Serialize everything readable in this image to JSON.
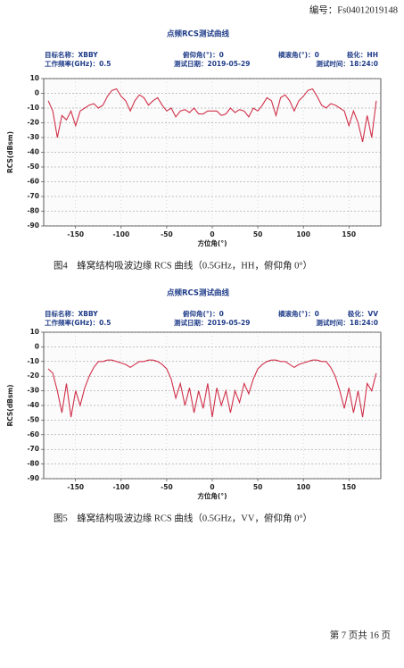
{
  "header": {
    "code": "编号：Fs04012019148"
  },
  "chart_data": [
    {
      "type": "line",
      "title": "点频RCS测试曲线",
      "info": [
        [
          "目标名称：XBBY",
          "俯仰角(°)：0",
          "横滚角(°)：0",
          "极化：HH"
        ],
        [
          "工作频率(GHz)：0.5",
          "测试日期：2019-05-29",
          "测试时间：18:24:0"
        ]
      ],
      "x_label": "方位角(°)",
      "y_label": "RCS(dBsm)",
      "color": "#d0304a",
      "grid": true,
      "xlim": [
        -185,
        185
      ],
      "ylim": [
        -90,
        10
      ],
      "xticks": [
        -150,
        -100,
        -50,
        0,
        50,
        100,
        150
      ],
      "yticks": [
        10,
        0,
        -10,
        -20,
        -30,
        -40,
        -50,
        -60,
        -70,
        -80,
        -90
      ],
      "x": [
        -180,
        -175,
        -170,
        -165,
        -160,
        -155,
        -150,
        -145,
        -140,
        -135,
        -130,
        -125,
        -120,
        -115,
        -110,
        -105,
        -100,
        -95,
        -90,
        -85,
        -80,
        -75,
        -70,
        -65,
        -60,
        -55,
        -50,
        -45,
        -40,
        -35,
        -30,
        -25,
        -20,
        -15,
        -10,
        -5,
        0,
        5,
        10,
        15,
        20,
        25,
        30,
        35,
        40,
        45,
        50,
        55,
        60,
        65,
        70,
        75,
        80,
        85,
        90,
        95,
        100,
        105,
        110,
        115,
        120,
        125,
        130,
        135,
        140,
        145,
        150,
        155,
        160,
        165,
        170,
        175,
        180
      ],
      "values": [
        -5,
        -12,
        -30,
        -15,
        -18,
        -12,
        -22,
        -12,
        -10,
        -8,
        -7,
        -10,
        -8,
        -2,
        2,
        3,
        -2,
        -5,
        -12,
        -5,
        -1,
        -3,
        -8,
        -5,
        -3,
        -8,
        -12,
        -10,
        -16,
        -12,
        -11,
        -13,
        -10,
        -14,
        -14,
        -12,
        -12,
        -12,
        -15,
        -14,
        -10,
        -13,
        -11,
        -12,
        -16,
        -10,
        -12,
        -8,
        -3,
        -5,
        -15,
        -3,
        -1,
        -5,
        -12,
        -5,
        -2,
        2,
        3,
        -2,
        -8,
        -10,
        -7,
        -8,
        -10,
        -12,
        -22,
        -12,
        -20,
        -33,
        -15,
        -30,
        -5
      ]
    },
    {
      "type": "line",
      "title": "点频RCS测试曲线",
      "info": [
        [
          "目标名称：XBBY",
          "俯仰角(°)：0",
          "横滚角(°)：0",
          "极化：VV"
        ],
        [
          "工作频率(GHz)：0.5",
          "测试日期：2019-05-29",
          "测试时间：18:24:0"
        ]
      ],
      "x_label": "方位角(°)",
      "y_label": "RCS(dBsm)",
      "color": "#d0304a",
      "grid": true,
      "xlim": [
        -185,
        185
      ],
      "ylim": [
        -90,
        10
      ],
      "xticks": [
        -150,
        -100,
        -50,
        0,
        50,
        100,
        150
      ],
      "yticks": [
        10,
        0,
        -10,
        -20,
        -30,
        -40,
        -50,
        -60,
        -70,
        -80,
        -90
      ],
      "x": [
        -180,
        -175,
        -170,
        -165,
        -160,
        -155,
        -150,
        -145,
        -140,
        -135,
        -130,
        -125,
        -120,
        -115,
        -110,
        -105,
        -100,
        -95,
        -90,
        -85,
        -80,
        -75,
        -70,
        -65,
        -60,
        -55,
        -50,
        -45,
        -40,
        -35,
        -30,
        -25,
        -20,
        -15,
        -10,
        -5,
        0,
        5,
        10,
        15,
        20,
        25,
        30,
        35,
        40,
        45,
        50,
        55,
        60,
        65,
        70,
        75,
        80,
        85,
        90,
        95,
        100,
        105,
        110,
        115,
        120,
        125,
        130,
        135,
        140,
        145,
        150,
        155,
        160,
        165,
        170,
        175,
        180
      ],
      "values": [
        -15,
        -18,
        -30,
        -45,
        -25,
        -48,
        -30,
        -40,
        -28,
        -20,
        -14,
        -10,
        -10,
        -9,
        -9,
        -10,
        -11,
        -12,
        -14,
        -12,
        -10,
        -10,
        -9,
        -9,
        -10,
        -12,
        -15,
        -22,
        -35,
        -25,
        -40,
        -28,
        -45,
        -30,
        -42,
        -25,
        -48,
        -28,
        -40,
        -30,
        -45,
        -30,
        -38,
        -25,
        -32,
        -22,
        -15,
        -12,
        -10,
        -9,
        -9,
        -10,
        -10,
        -12,
        -14,
        -12,
        -11,
        -10,
        -9,
        -9,
        -10,
        -10,
        -14,
        -20,
        -30,
        -42,
        -28,
        -45,
        -30,
        -48,
        -25,
        -30,
        -18
      ]
    }
  ],
  "captions": [
    "图4　蜂窝结构吸波边缘 RCS 曲线（0.5GHz，HH，俯仰角 0°）",
    "图5　蜂窝结构吸波边缘 RCS 曲线（0.5GHz，VV，俯仰角 0°）"
  ],
  "footer": {
    "page": "第 7 页共 16 页"
  }
}
